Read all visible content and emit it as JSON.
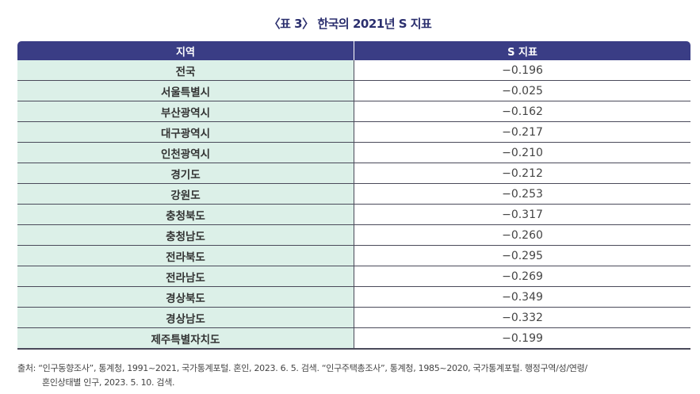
{
  "title": "〈표 3〉 한국의 2021년 S 지표",
  "table": {
    "headers": [
      "지역",
      "S 지표"
    ],
    "rows": [
      {
        "region": "전국",
        "value": "−0.196"
      },
      {
        "region": "서울특별시",
        "value": "−0.025"
      },
      {
        "region": "부산광역시",
        "value": "−0.162"
      },
      {
        "region": "대구광역시",
        "value": "−0.217"
      },
      {
        "region": "인천광역시",
        "value": "−0.210"
      },
      {
        "region": "경기도",
        "value": "−0.212"
      },
      {
        "region": "강원도",
        "value": "−0.253"
      },
      {
        "region": "충청북도",
        "value": "−0.317"
      },
      {
        "region": "충청남도",
        "value": "−0.260"
      },
      {
        "region": "전라북도",
        "value": "−0.295"
      },
      {
        "region": "전라남도",
        "value": "−0.269"
      },
      {
        "region": "경상북도",
        "value": "−0.349"
      },
      {
        "region": "경상남도",
        "value": "−0.332"
      },
      {
        "region": "제주특별자치도",
        "value": "−0.199"
      }
    ]
  },
  "source": {
    "line1": "출처: “인구동향조사”, 통계청, 1991~2021, 국가통계포털. 혼인, 2023. 6. 5. 검색. “인구주택총조사”, 통계청, 1985~2020, 국가통계포털. 행정구역/성/연령/",
    "line2": "혼인상태별 인구, 2023. 5. 10. 검색."
  },
  "colors": {
    "header_bg": "#3a3d85",
    "region_bg": "#dcf0e8",
    "title_color": "#2b2f6e"
  }
}
